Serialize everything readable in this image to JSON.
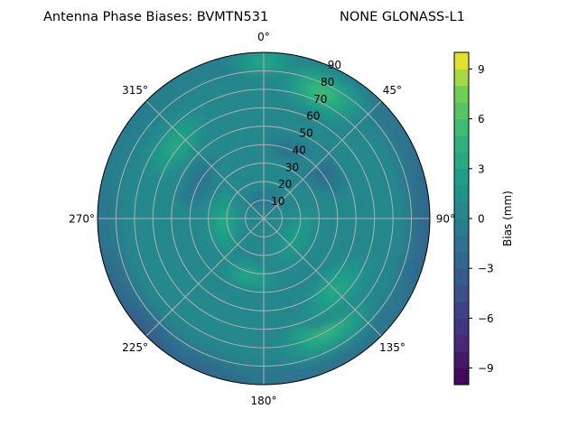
{
  "chart_data": {
    "type": "heatmap",
    "subtype": "polar-contour",
    "title_left": "Antenna Phase Biases: BVMTN531",
    "title_right": "NONE GLONASS-L1",
    "angular_ticks": [
      "0°",
      "45°",
      "90°",
      "135°",
      "180°",
      "225°",
      "270°",
      "315°"
    ],
    "radial_ticks": [
      "10",
      "20",
      "30",
      "40",
      "50",
      "60",
      "70",
      "80",
      "90"
    ],
    "radial_range": [
      0,
      90
    ],
    "colorbar": {
      "label": "Bias (mm)",
      "range": [
        -10,
        10
      ],
      "levels": 20,
      "ticks": [
        "9",
        "6",
        "3",
        "0",
        "−3",
        "−6",
        "−9"
      ],
      "tick_values": [
        9,
        6,
        3,
        0,
        -3,
        -6,
        -9
      ],
      "colormap": "viridis"
    },
    "base_value": 0.5,
    "features": [
      {
        "azimuth": 25,
        "zenith": 75,
        "value": 5,
        "spread": 14
      },
      {
        "azimuth": 0,
        "zenith": 85,
        "value": 3,
        "spread": 10
      },
      {
        "azimuth": 310,
        "zenith": 62,
        "value": 3.5,
        "spread": 13
      },
      {
        "azimuth": 150,
        "zenith": 68,
        "value": 5,
        "spread": 15
      },
      {
        "azimuth": 135,
        "zenith": 55,
        "value": 3,
        "spread": 14
      },
      {
        "azimuth": 265,
        "zenith": 22,
        "value": 3,
        "spread": 12
      },
      {
        "azimuth": 195,
        "zenith": 32,
        "value": 3.5,
        "spread": 9
      },
      {
        "azimuth": 120,
        "zenith": 20,
        "value": 2,
        "spread": 12
      },
      {
        "azimuth": 45,
        "zenith": 40,
        "value": -2,
        "spread": 14
      },
      {
        "azimuth": 20,
        "zenith": 40,
        "value": -1.5,
        "spread": 10
      },
      {
        "azimuth": 300,
        "zenith": 40,
        "value": -1,
        "spread": 12
      },
      {
        "azimuth": 0,
        "zenith": 10,
        "value": -1,
        "spread": 8
      }
    ],
    "rim": [
      {
        "azimuth": 0,
        "value": 0
      },
      {
        "azimuth": 45,
        "value": -2
      },
      {
        "azimuth": 90,
        "value": -5
      },
      {
        "azimuth": 135,
        "value": -2
      },
      {
        "azimuth": 180,
        "value": -3
      },
      {
        "azimuth": 225,
        "value": -6
      },
      {
        "azimuth": 270,
        "value": -2
      },
      {
        "azimuth": 315,
        "value": -1
      }
    ]
  }
}
